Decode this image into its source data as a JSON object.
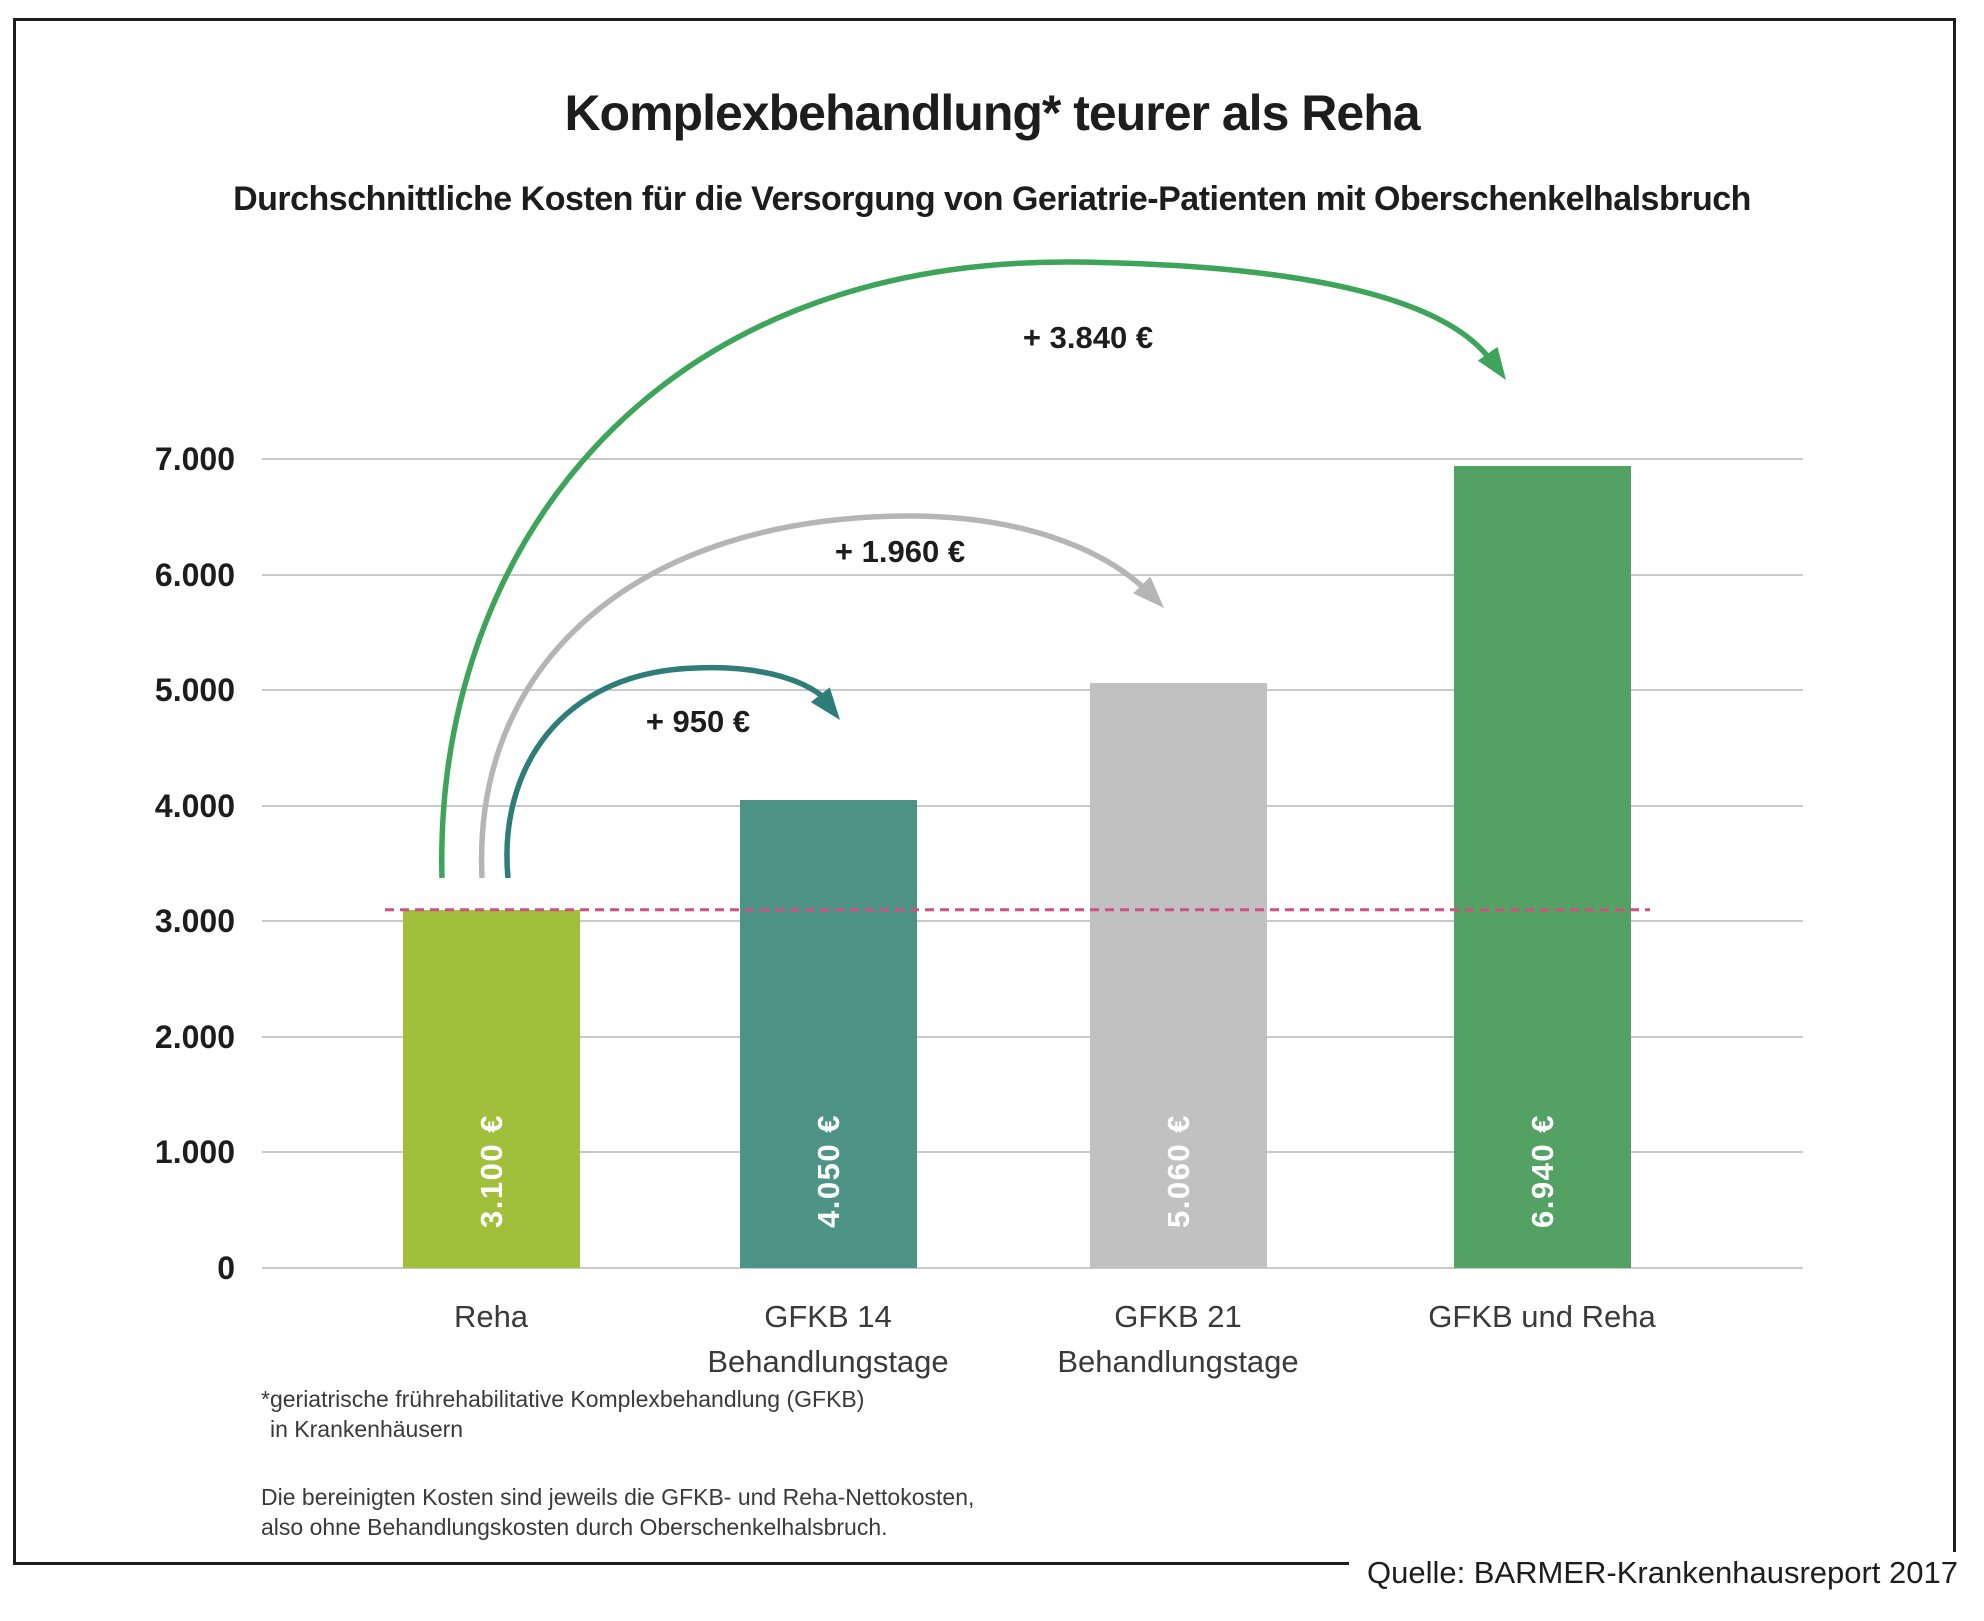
{
  "chart_data": {
    "type": "bar",
    "title": "Komplexbehandlung* teurer als Reha",
    "subtitle": "Durchschnittliche Kosten für die Versorgung von Geriatrie-Patienten mit Oberschenkelhalsbruch",
    "xlabel": "",
    "ylabel": "",
    "categories": [
      "Reha",
      "GFKB 14 Behandlungstage",
      "GFKB 21 Behandlungstage",
      "GFKB und Reha"
    ],
    "category_lines": [
      [
        "Reha",
        ""
      ],
      [
        "GFKB 14",
        "Behandlungstage"
      ],
      [
        "GFKB 21",
        "Behandlungstage"
      ],
      [
        "GFKB und Reha",
        ""
      ]
    ],
    "values": [
      3100,
      4050,
      5060,
      6940
    ],
    "value_labels": [
      "3.100 €",
      "4.050 €",
      "5.060 €",
      "6.940 €"
    ],
    "bar_colors": [
      "#a0bf3a",
      "#4d9386",
      "#c1c1c1",
      "#54a263"
    ],
    "ylim": [
      0,
      7000
    ],
    "ytick_interval": 1000,
    "ytick_labels": [
      "0",
      "1.000",
      "2.000",
      "3.000",
      "4.000",
      "5.000",
      "6.000",
      "7.000"
    ],
    "grid": true,
    "legend": false,
    "gridline_color": "#c9c9c9",
    "reference_line": {
      "value": 3100,
      "style": "dashed",
      "color": "#d14f82"
    },
    "annotations": [
      {
        "label": "+ 950 €",
        "delta": 950,
        "from": "Reha",
        "to": "GFKB 14 Behandlungstage",
        "color": "#2e7d79"
      },
      {
        "label": "+ 1.960 €",
        "delta": 1960,
        "from": "Reha",
        "to": "GFKB 21 Behandlungstage",
        "color": "#b5b5b5"
      },
      {
        "label": "+ 3.840 €",
        "delta": 3840,
        "from": "Reha",
        "to": "GFKB und Reha",
        "color": "#3da45a"
      }
    ]
  },
  "footnotes": {
    "asterisk_line1": "*geriatrische frührehabilitative Komplexbehandlung (GFKB)",
    "asterisk_line2": "in Krankenhäusern",
    "note_line1": "Die bereinigten Kosten sind jeweils die GFKB- und Reha-Nettokosten,",
    "note_line2": "also ohne Behandlungskosten durch Oberschenkelhalsbruch."
  },
  "source": "Quelle: BARMER-Krankenhausreport 2017"
}
